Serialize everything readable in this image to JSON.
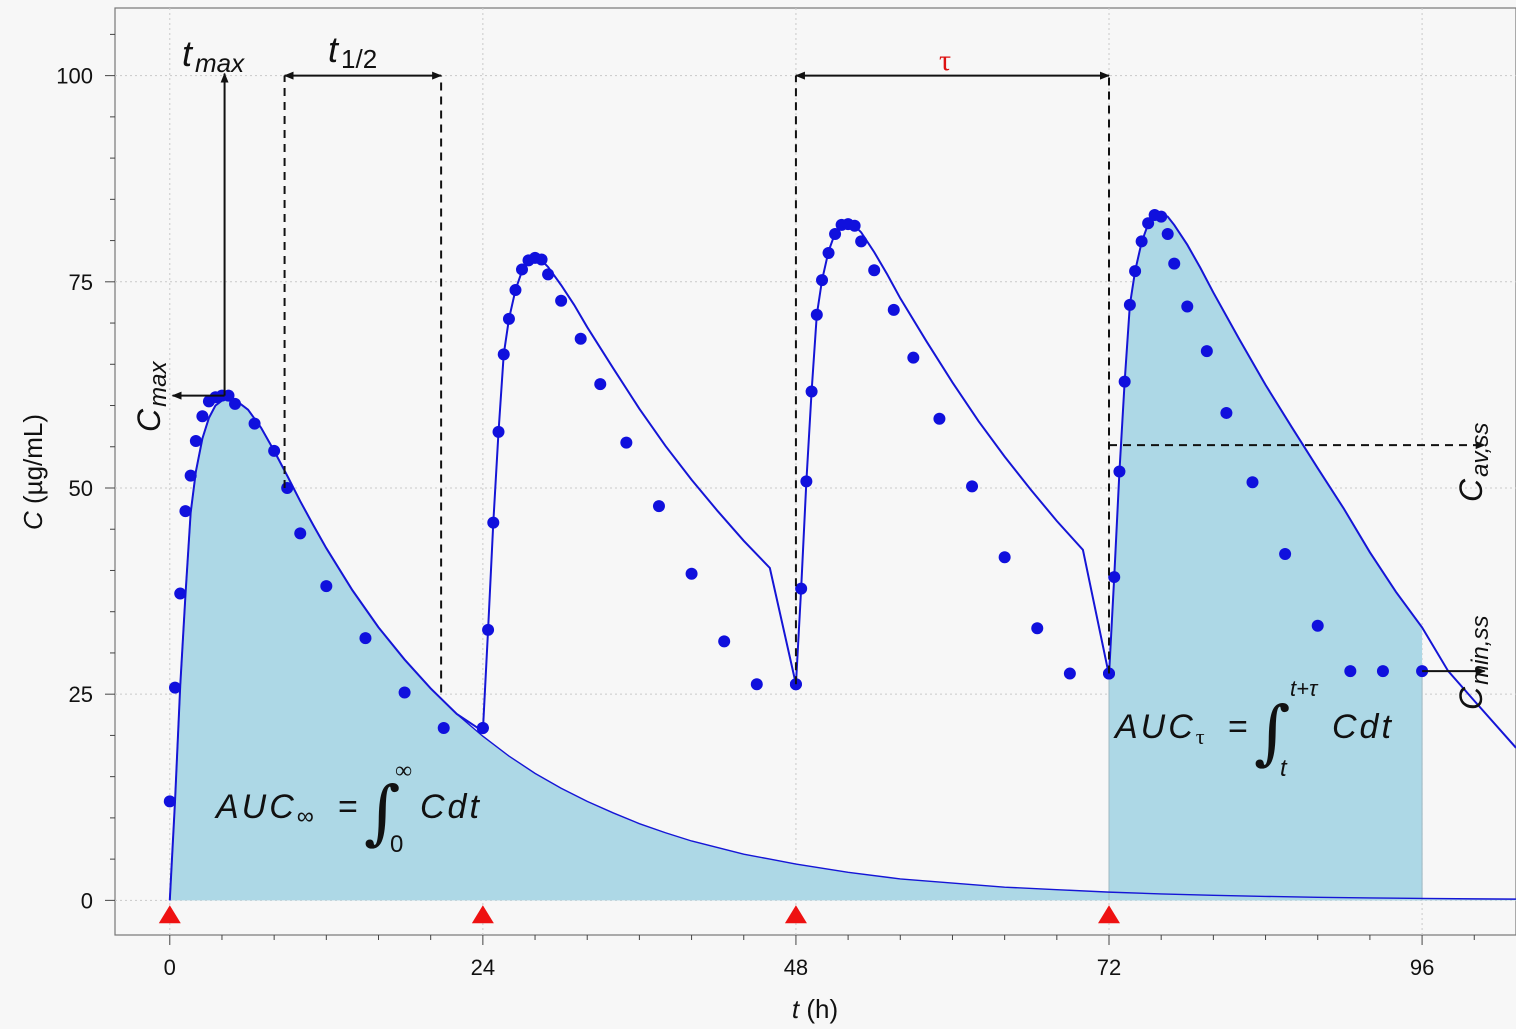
{
  "chart_data": {
    "type": "line",
    "xlabel_var": "t",
    "xlabel_unit": " (h)",
    "ylabel_var": "C",
    "ylabel_unit": " (µg/mL)",
    "xlim": [
      -4.2,
      103.2
    ],
    "ylim": [
      -4.2,
      108.2
    ],
    "x_ticks": [
      0,
      24,
      48,
      72,
      96
    ],
    "x_ticks_labels": [
      "0",
      "24",
      "48",
      "72",
      "96"
    ],
    "y_ticks": [
      0,
      25,
      50,
      75,
      100
    ],
    "y_ticks_labels": [
      "0",
      "25",
      "50",
      "75",
      "100"
    ],
    "grid": true,
    "colors": {
      "line": "#1515d6",
      "marker": "#1010dd",
      "fill": "#add8e6",
      "dose": "#ee1111",
      "tau": "#dd1111",
      "background": "#f7f7f7"
    },
    "dose_times": [
      0,
      24,
      48,
      72
    ],
    "single_dose_tail": {
      "x": [
        0,
        0.4,
        0.8,
        1.2,
        1.6,
        2.0,
        2.5,
        3,
        3.5,
        4,
        4.5,
        5,
        6,
        7,
        8,
        9,
        10,
        11,
        12,
        14,
        16,
        18,
        20,
        22,
        24,
        26,
        28,
        30,
        32,
        34,
        36,
        38,
        40,
        42,
        44,
        46,
        48,
        52,
        56,
        60,
        64,
        68,
        72,
        76,
        80,
        84,
        88,
        92,
        96,
        100,
        103.2
      ],
      "y": [
        0,
        12,
        26,
        37,
        47,
        52,
        56,
        58.5,
        60,
        60.6,
        61,
        60.7,
        59.5,
        57.3,
        54.5,
        51.5,
        48.4,
        45.5,
        42.7,
        37.6,
        33.1,
        29.2,
        25.7,
        22.6,
        19.9,
        17.5,
        15.4,
        13.6,
        12.0,
        10.6,
        9.3,
        8.2,
        7.2,
        6.4,
        5.6,
        5.0,
        4.4,
        3.4,
        2.6,
        2.1,
        1.6,
        1.3,
        1.0,
        0.78,
        0.61,
        0.48,
        0.37,
        0.29,
        0.23,
        0.18,
        0.15
      ]
    },
    "multi_dose_curve": {
      "x": [
        0,
        0.4,
        0.8,
        1.2,
        1.6,
        2.0,
        2.5,
        3,
        3.5,
        4,
        4.5,
        5,
        6,
        7,
        8,
        9,
        10,
        11,
        12,
        14,
        16,
        18,
        20,
        22,
        24,
        24.4,
        24.8,
        25.2,
        25.6,
        26,
        26.5,
        27,
        27.5,
        28,
        28.5,
        29,
        30,
        31,
        32,
        34,
        36,
        38,
        40,
        42,
        44,
        46,
        48,
        48.4,
        48.8,
        49.2,
        49.6,
        50,
        50.5,
        51,
        51.5,
        52,
        52.5,
        53,
        54,
        55,
        56,
        58,
        60,
        62,
        64,
        66,
        68,
        70,
        72,
        72.4,
        72.8,
        73.2,
        73.6,
        74,
        74.5,
        75,
        75.5,
        76,
        76.5,
        77,
        78,
        79,
        80,
        82,
        84,
        86,
        88,
        90,
        92,
        94,
        96,
        98,
        100,
        103.2
      ],
      "y": [
        0,
        12,
        26,
        37,
        47,
        52,
        56,
        58.5,
        60,
        60.6,
        61,
        60.7,
        59.5,
        57.3,
        54.5,
        51.5,
        48.4,
        45.5,
        42.7,
        37.6,
        33.1,
        29.2,
        25.7,
        22.6,
        20.5,
        32.8,
        45.8,
        56.8,
        66.2,
        70.5,
        74,
        76.3,
        77.6,
        77.9,
        77.6,
        76.8,
        74.6,
        72.2,
        69.5,
        64.5,
        59.6,
        55.1,
        51.0,
        47.2,
        43.6,
        40.3,
        26.2,
        37.8,
        50.8,
        61.7,
        71.0,
        75.2,
        78.7,
        80.9,
        82.0,
        82.3,
        81.8,
        81.0,
        78.6,
        75.9,
        73.0,
        67.8,
        62.8,
        58.1,
        53.8,
        49.8,
        46.0,
        42.5,
        27.3,
        39.2,
        52.0,
        62.9,
        72.2,
        76.3,
        79.8,
        82.0,
        83.1,
        83.3,
        82.9,
        81.9,
        79.5,
        76.7,
        73.7,
        68.0,
        62.5,
        57.4,
        52.4,
        47.5,
        42.2,
        37.4,
        33.1,
        27.8,
        24.2,
        18.5
      ]
    },
    "markers": {
      "x": [
        0,
        0.4,
        0.8,
        1.2,
        1.6,
        2.0,
        2.5,
        3,
        3.5,
        4,
        4.5,
        5,
        6.5,
        8,
        9,
        10,
        12,
        15,
        18,
        21,
        24,
        24,
        24.4,
        24.8,
        25.2,
        25.6,
        26,
        26.5,
        27,
        27.5,
        28,
        28.5,
        29,
        30,
        31.5,
        33,
        35,
        37.5,
        40,
        42.5,
        45,
        48,
        48,
        48.4,
        48.8,
        49.2,
        49.6,
        50,
        50.5,
        51,
        51.5,
        52,
        52.5,
        53,
        54,
        55.5,
        57,
        59,
        61.5,
        64,
        66.5,
        69,
        72,
        72,
        72.4,
        72.8,
        73.2,
        73.6,
        74,
        74.5,
        75,
        75.5,
        76,
        76.5,
        77,
        78,
        79.5,
        81,
        83,
        85.5,
        88,
        90.5,
        93,
        96
      ],
      "y": [
        12,
        25.8,
        37.2,
        47.2,
        51.5,
        55.7,
        58.7,
        60.5,
        61,
        61.2,
        61.2,
        60.2,
        57.8,
        54.5,
        50,
        44.5,
        38.1,
        31.8,
        25.2,
        20.9,
        20.9,
        20.9,
        32.8,
        45.8,
        56.8,
        66.2,
        70.5,
        74,
        76.5,
        77.6,
        77.9,
        77.7,
        75.9,
        72.7,
        68.1,
        62.6,
        55.5,
        47.8,
        39.6,
        31.4,
        26.2,
        26.2,
        26.2,
        37.8,
        50.8,
        61.7,
        71,
        75.2,
        78.5,
        80.8,
        81.9,
        82,
        81.8,
        79.9,
        76.4,
        71.6,
        65.8,
        58.4,
        50.2,
        41.6,
        33,
        27.5,
        27.5,
        27.5,
        39.2,
        52,
        62.9,
        72.2,
        76.3,
        79.9,
        82.1,
        83.1,
        82.9,
        80.8,
        77.2,
        72,
        66.6,
        59.1,
        50.7,
        42,
        33.3,
        27.8,
        27.8,
        27.8
      ]
    },
    "annotations": {
      "t_max": {
        "main": "t",
        "sub": "max"
      },
      "t_half": {
        "main": "t",
        "sub": "1/2"
      },
      "tau": "τ",
      "c_max": {
        "main": "C",
        "sub": "max"
      },
      "c_av_ss": {
        "main": "C",
        "sub": "av,ss"
      },
      "c_min_ss": {
        "main": "C",
        "sub": "min,ss"
      },
      "auc_inf": {
        "lhs": "AUC",
        "lhs_sub": "∞",
        "eq": "=",
        "upper": "∞",
        "lower": "0",
        "integrand": "Cdt"
      },
      "auc_tau": {
        "lhs": "AUC",
        "lhs_sub": "τ",
        "eq": "=",
        "upper": "t+τ",
        "lower": "t",
        "integrand": "Cdt"
      }
    },
    "annotation_values": {
      "t_max": 4.2,
      "c_max": 61.2,
      "t_half_start": 8.8,
      "t_half_end": 20.8,
      "t_half_top": 100,
      "t_half_values": [
        50,
        25.2
      ],
      "tau_start": 48,
      "tau_end": 72,
      "tau_top": 100,
      "c_av_ss": 55.2,
      "c_min_ss": 27.8,
      "auc_tau_start": 72,
      "auc_tau_end": 96
    }
  }
}
